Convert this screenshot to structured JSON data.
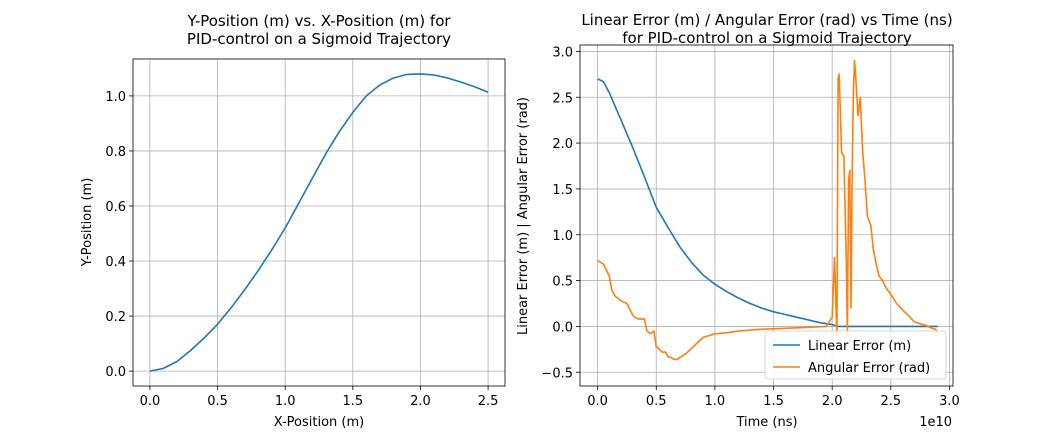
{
  "chart_data": [
    {
      "type": "line",
      "title": [
        "Y-Position (m) vs. X-Position (m) for",
        "PID-control on a Sigmoid Trajectory"
      ],
      "xlabel": "X-Position (m)",
      "ylabel": "Y-Position (m)",
      "xlim": [
        -0.125,
        2.625
      ],
      "ylim": [
        -0.054,
        1.134
      ],
      "xticks": [
        0.0,
        0.5,
        1.0,
        1.5,
        2.0,
        2.5
      ],
      "xtick_labels": [
        "0.0",
        "0.5",
        "1.0",
        "1.5",
        "2.0",
        "2.5"
      ],
      "yticks": [
        0.0,
        0.2,
        0.4,
        0.6,
        0.8,
        1.0
      ],
      "ytick_labels": [
        "0.0",
        "0.2",
        "0.4",
        "0.6",
        "0.8",
        "1.0"
      ],
      "grid": true,
      "series": [
        {
          "color": "#1f77b4",
          "x": [
            0.0,
            0.1,
            0.2,
            0.3,
            0.4,
            0.5,
            0.6,
            0.7,
            0.8,
            0.9,
            1.0,
            1.1,
            1.2,
            1.3,
            1.4,
            1.5,
            1.6,
            1.7,
            1.8,
            1.9,
            2.0,
            2.1,
            2.2,
            2.3,
            2.4,
            2.5
          ],
          "y": [
            0.0,
            0.01,
            0.035,
            0.075,
            0.12,
            0.17,
            0.23,
            0.295,
            0.365,
            0.44,
            0.52,
            0.61,
            0.7,
            0.79,
            0.87,
            0.94,
            1.0,
            1.04,
            1.065,
            1.078,
            1.08,
            1.076,
            1.065,
            1.05,
            1.033,
            1.013
          ]
        }
      ]
    },
    {
      "type": "line",
      "title": [
        "Linear Error (m) / Angular Error (rad) vs Time (ns)",
        "for PID-control on a Sigmoid Trajectory"
      ],
      "xlabel": "Time (ns)",
      "ylabel": "Linear Error (m) | Angular Error (rad)",
      "x_offset_label": "1e10",
      "xlim": [
        -0.15,
        3.03
      ],
      "ylim": [
        -0.65,
        3.07
      ],
      "xticks": [
        0.0,
        0.5,
        1.0,
        1.5,
        2.0,
        2.5,
        3.0
      ],
      "xtick_labels": [
        "0.0",
        "0.5",
        "1.0",
        "1.5",
        "2.0",
        "2.5",
        "3.0"
      ],
      "yticks": [
        -0.5,
        0.0,
        0.5,
        1.0,
        1.5,
        2.0,
        2.5,
        3.0
      ],
      "ytick_labels": [
        "−0.5",
        "0.0",
        "0.5",
        "1.0",
        "1.5",
        "2.0",
        "2.5",
        "3.0"
      ],
      "grid": true,
      "legend": "lower-right",
      "series": [
        {
          "name": "Linear Error (m)",
          "color": "#1f77b4",
          "x": [
            0.0,
            0.05,
            0.1,
            0.2,
            0.3,
            0.4,
            0.5,
            0.6,
            0.7,
            0.8,
            0.9,
            1.0,
            1.1,
            1.2,
            1.3,
            1.4,
            1.5,
            1.6,
            1.7,
            1.8,
            1.9,
            2.0,
            2.05,
            2.2,
            2.4,
            2.6,
            2.8,
            2.9
          ],
          "y": [
            2.7,
            2.67,
            2.55,
            2.25,
            1.95,
            1.63,
            1.3,
            1.08,
            0.87,
            0.7,
            0.56,
            0.46,
            0.38,
            0.31,
            0.25,
            0.2,
            0.16,
            0.13,
            0.1,
            0.07,
            0.04,
            0.02,
            0.0,
            0.0,
            0.0,
            0.0,
            0.0,
            0.0
          ]
        },
        {
          "name": "Angular Error (rad)",
          "color": "#ff7f0e",
          "x": [
            0.0,
            0.05,
            0.1,
            0.12,
            0.15,
            0.2,
            0.25,
            0.3,
            0.32,
            0.35,
            0.4,
            0.42,
            0.45,
            0.48,
            0.5,
            0.52,
            0.55,
            0.58,
            0.6,
            0.63,
            0.65,
            0.68,
            0.7,
            0.75,
            0.8,
            0.85,
            0.9,
            0.95,
            1.0,
            1.1,
            1.2,
            1.4,
            1.6,
            1.8,
            1.95,
            2.0,
            2.02,
            2.04,
            2.05,
            2.06,
            2.08,
            2.1,
            2.12,
            2.13,
            2.14,
            2.15,
            2.16,
            2.17,
            2.18,
            2.19,
            2.2,
            2.22,
            2.24,
            2.26,
            2.28,
            2.3,
            2.33,
            2.35,
            2.38,
            2.4,
            2.43,
            2.46,
            2.5,
            2.55,
            2.6,
            2.65,
            2.7,
            2.75,
            2.8,
            2.85,
            2.88,
            2.9
          ],
          "y": [
            0.72,
            0.68,
            0.55,
            0.4,
            0.33,
            0.28,
            0.25,
            0.12,
            0.1,
            0.08,
            0.08,
            -0.05,
            -0.08,
            -0.05,
            -0.22,
            -0.24,
            -0.28,
            -0.28,
            -0.33,
            -0.34,
            -0.36,
            -0.36,
            -0.34,
            -0.3,
            -0.24,
            -0.18,
            -0.12,
            -0.1,
            -0.08,
            -0.07,
            -0.05,
            -0.03,
            -0.02,
            -0.01,
            0.0,
            0.1,
            0.75,
            -0.1,
            2.7,
            2.75,
            1.9,
            1.85,
            0.7,
            -0.1,
            1.6,
            1.7,
            0.2,
            1.6,
            2.5,
            2.9,
            2.75,
            2.3,
            2.5,
            1.9,
            1.6,
            1.2,
            1.1,
            0.85,
            0.65,
            0.55,
            0.5,
            0.42,
            0.35,
            0.25,
            0.18,
            0.12,
            0.05,
            0.03,
            0.01,
            -0.02,
            -0.03,
            -0.07
          ]
        }
      ]
    }
  ]
}
